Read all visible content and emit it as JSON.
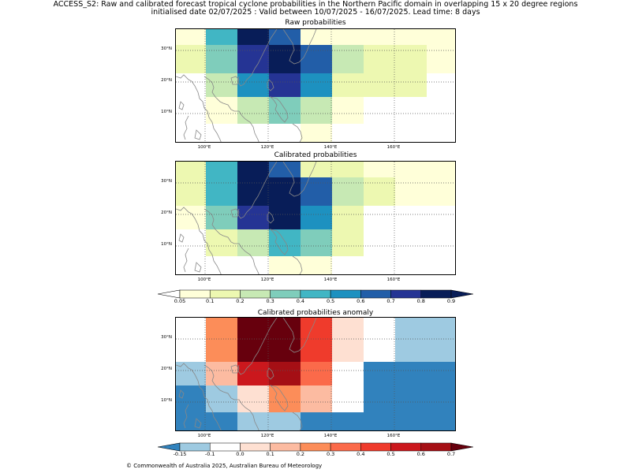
{
  "header": {
    "line1": "ACCESS_S2: Raw and calibrated forecast tropical cyclone probabilities in the Northern Pacific domain in overlapping 15 x 20 degree regions",
    "line2": "initialised date 02/07/2025 :  Valid between 10/07/2025 - 16/07/2025. Lead time: 8 days"
  },
  "axes": {
    "lat_labels": [
      "30°N",
      "20°N",
      "10°N"
    ],
    "lon_labels": [
      "100°E",
      "120°E",
      "140°E",
      "160°E"
    ]
  },
  "panels": [
    {
      "title": "Raw probabilities",
      "cells": [
        [
          "#ffffd9",
          "#41b6c4",
          "#081d58",
          "#225ea8",
          "#ffffd9",
          "#ffffd9",
          "#ffffd9",
          "#ffffd9",
          "#ffffd9"
        ],
        [
          "#edf8b1",
          "#7fcdbb",
          "#253494",
          "#081d58",
          "#225ea8",
          "#c7e9b4",
          "#edf8b1",
          "#edf8b1",
          "#ffffd9"
        ],
        [
          "#ffffff",
          "#c7e9b4",
          "#1d91c0",
          "#253494",
          "#1d91c0",
          "#edf8b1",
          "#edf8b1",
          "#edf8b1",
          "#ffffff"
        ],
        [
          "#ffffff",
          "#ffffd9",
          "#c7e9b4",
          "#7fcdbb",
          "#c7e9b4",
          "#ffffd9",
          "#ffffff",
          "#ffffff",
          "#ffffff"
        ],
        [
          "#ffffff",
          "#ffffff",
          "#ffffff",
          "#ffffff",
          "#ffffd9",
          "#ffffff",
          "#ffffff",
          "#ffffff",
          "#ffffff"
        ]
      ]
    },
    {
      "title": "Calibrated probabilities",
      "cells": [
        [
          "#edf8b1",
          "#41b6c4",
          "#081d58",
          "#225ea8",
          "#edf8b1",
          "#edf8b1",
          "#ffffd9",
          "#ffffd9",
          "#ffffd9"
        ],
        [
          "#edf8b1",
          "#41b6c4",
          "#081d58",
          "#081d58",
          "#225ea8",
          "#c7e9b4",
          "#edf8b1",
          "#ffffd9",
          "#ffffd9"
        ],
        [
          "#ffffd9",
          "#7fcdbb",
          "#253494",
          "#081d58",
          "#1d91c0",
          "#edf8b1",
          "#ffffff",
          "#ffffff",
          "#ffffff"
        ],
        [
          "#ffffff",
          "#edf8b1",
          "#c7e9b4",
          "#41b6c4",
          "#7fcdbb",
          "#edf8b1",
          "#ffffff",
          "#ffffff",
          "#ffffff"
        ],
        [
          "#ffffff",
          "#ffffff",
          "#ffffff",
          "#ffffd9",
          "#ffffd9",
          "#ffffff",
          "#ffffff",
          "#ffffff",
          "#ffffff"
        ]
      ]
    },
    {
      "title": "Calibrated probabilities anomaly",
      "cells": [
        [
          "#ffffff",
          "#fc8d59",
          "#67000d",
          "#67000d",
          "#ef3b2c",
          "#fee0d2",
          "#ffffff",
          "#9ecae1",
          "#9ecae1"
        ],
        [
          "#ffffff",
          "#fc8d59",
          "#67000d",
          "#67000d",
          "#ef3b2c",
          "#fee0d2",
          "#ffffff",
          "#9ecae1",
          "#9ecae1"
        ],
        [
          "#9ecae1",
          "#fcbba1",
          "#cb181d",
          "#a50f15",
          "#fb6a4a",
          "#ffffff",
          "#3182bd",
          "#3182bd",
          "#3182bd"
        ],
        [
          "#3182bd",
          "#9ecae1",
          "#fee0d2",
          "#fc8d59",
          "#fcbba1",
          "#ffffff",
          "#3182bd",
          "#3182bd",
          "#3182bd"
        ],
        [
          "#3182bd",
          "#3182bd",
          "#9ecae1",
          "#9ecae1",
          "#3182bd",
          "#3182bd",
          "#3182bd",
          "#3182bd",
          "#3182bd"
        ]
      ]
    }
  ],
  "colorbar_prob": {
    "colors": [
      "#ffffd9",
      "#edf8b1",
      "#c7e9b4",
      "#7fcdbb",
      "#41b6c4",
      "#1d91c0",
      "#225ea8",
      "#253494",
      "#081d58"
    ],
    "under": "#ffffff",
    "over": "#081d58",
    "ticks": [
      "0.05",
      "0.1",
      "0.2",
      "0.3",
      "0.4",
      "0.5",
      "0.6",
      "0.7",
      "0.8",
      "0.9"
    ]
  },
  "colorbar_anom": {
    "colors": [
      "#9ecae1",
      "#ffffff",
      "#fee0d2",
      "#fcbba1",
      "#fc8d59",
      "#fb6a4a",
      "#ef3b2c",
      "#cb181d",
      "#a50f15"
    ],
    "under": "#3182bd",
    "over": "#67000d",
    "ticks": [
      "-0.15",
      "-0.1",
      "0.0",
      "0.1",
      "0.2",
      "0.3",
      "0.4",
      "0.5",
      "0.6",
      "0.7"
    ]
  },
  "footer": {
    "copyright": "© Commonwealth of Australia 2025, Australian Bureau of Meteorology"
  }
}
